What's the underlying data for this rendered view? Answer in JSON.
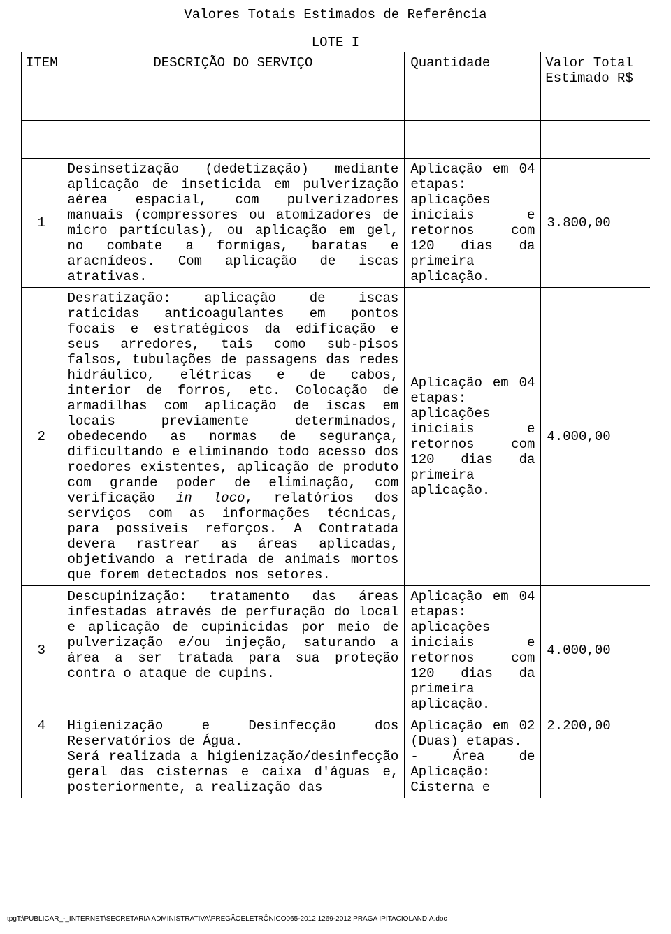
{
  "title": "Valores Totais Estimados de Referência",
  "lote": "LOTE I",
  "headers": {
    "item": "ITEM",
    "desc": "DESCRIÇÃO DO SERVIÇO",
    "qty": "Quantidade",
    "val": "Valor Total\nEstimado R$"
  },
  "rows": [
    {
      "item": "1",
      "desc": "Desinsetização (dedetização) mediante aplicação de inseticida em pulverização aérea espacial, com pulverizadores manuais (compressores ou atomizadores de micro partículas), ou aplicação em gel, no combate a formigas, baratas e aracnídeos. Com aplicação de iscas atrativas.",
      "qty": "Aplicação em 04 etapas: aplicações iniciais e retornos com 120 dias da primeira aplicação.",
      "val": "3.800,00"
    },
    {
      "item": "2",
      "desc_a": "Desratização: aplicação de iscas raticidas anticoagulantes em pontos focais e estratégicos da edificação e seus arredores, tais como sub-pisos falsos, tubulações de passagens das redes hidráulico, elétricas e de cabos, interior de forros, etc. Colocação de armadilhas com aplicação de iscas em locais previamente determinados, obedecendo as normas de segurança, dificultando e eliminando todo acesso dos roedores existentes, aplicação de produto com grande poder de eliminação, com verificação ",
      "desc_italic": "in loco",
      "desc_b": ", relatórios dos serviços com as informações técnicas, para possíveis reforços. A Contratada devera rastrear as áreas aplicadas, objetivando a retirada de animais mortos que forem detectados nos setores.",
      "qty": "Aplicação em 04 etapas: aplicações iniciais e retornos com 120 dias da primeira aplicação.",
      "val": "4.000,00"
    },
    {
      "item": "3",
      "desc": "Descupinização: tratamento das áreas infestadas através de perfuração do local e aplicação de cupinicidas por meio de pulverização e/ou injeção, saturando a área a ser tratada para sua proteção contra o ataque de cupins.",
      "qty": "Aplicação em 04 etapas: aplicações iniciais e retornos com 120 dias da primeira aplicação.",
      "val": "4.000,00"
    },
    {
      "item": "4",
      "desc": "Higienização e Desinfecção dos Reservatórios de Água.\nSerá realizada a higienização/desinfecção geral das cisternas e caixa d'águas e, posteriormente, a realização das",
      "qty": "Aplicação em 02 (Duas) etapas.\n- Área de Aplicação: Cisterna e",
      "val": "2.200,00"
    }
  ],
  "footer": "tpgT:\\PUBLICAR_-_INTERNET\\SECRETARIA ADMINISTRATIVA\\PREGÃOELETRÔNICO065-2012 1269-2012  PRAGA IPITACIOLANDIA.doc"
}
